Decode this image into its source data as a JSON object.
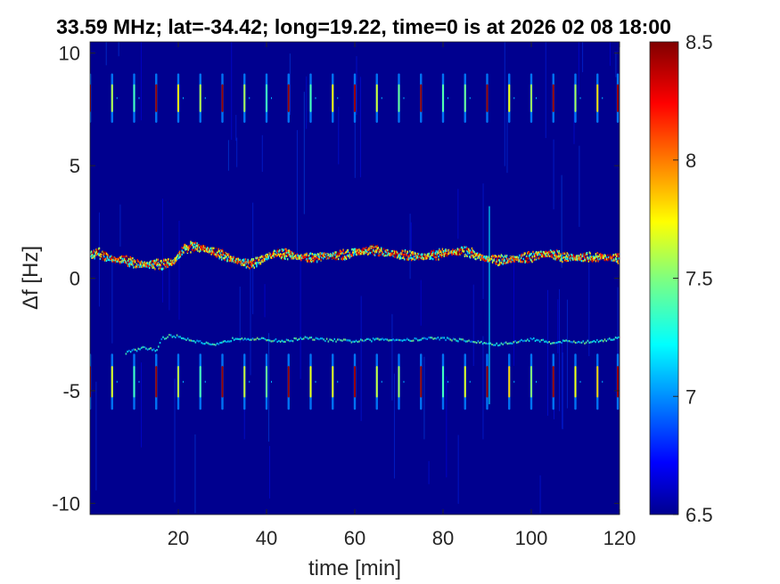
{
  "chart_data": {
    "type": "heatmap",
    "title": "33.59 MHz;  lat=-34.42; long=19.22, time=0 is at 2026 02 08 18:00",
    "xlabel": "time [min]",
    "ylabel": "Δf [Hz]",
    "xlim": [
      0,
      120
    ],
    "ylim": [
      -10.5,
      10.5
    ],
    "xticks": [
      "20",
      "40",
      "60",
      "80",
      "100",
      "120"
    ],
    "yticks": [
      "10",
      "5",
      "0",
      "-5",
      "-10"
    ],
    "colorbar": {
      "min": 6.5,
      "max": 8.5,
      "ticks": [
        "8.5",
        "8",
        "7.5",
        "7",
        "6.5"
      ],
      "colormap": "jet"
    },
    "background_level": 6.6,
    "features": {
      "main_trace": {
        "label": "main carrier trace near +1 Hz",
        "points": [
          [
            0,
            1.0
          ],
          [
            2,
            1.1
          ],
          [
            4,
            0.9
          ],
          [
            6,
            0.8
          ],
          [
            8,
            0.8
          ],
          [
            10,
            0.65
          ],
          [
            13,
            0.6
          ],
          [
            16,
            0.6
          ],
          [
            19,
            0.75
          ],
          [
            20,
            1.0
          ],
          [
            21,
            1.3
          ],
          [
            23,
            1.4
          ],
          [
            26,
            1.3
          ],
          [
            29,
            1.1
          ],
          [
            33,
            0.8
          ],
          [
            36,
            0.6
          ],
          [
            38,
            0.75
          ],
          [
            40,
            0.95
          ],
          [
            42,
            1.1
          ],
          [
            45,
            1.05
          ],
          [
            48,
            0.9
          ],
          [
            52,
            0.95
          ],
          [
            56,
            1.0
          ],
          [
            60,
            1.15
          ],
          [
            64,
            1.25
          ],
          [
            68,
            1.1
          ],
          [
            72,
            1.0
          ],
          [
            76,
            0.95
          ],
          [
            80,
            1.1
          ],
          [
            84,
            1.2
          ],
          [
            86,
            1.15
          ],
          [
            88,
            0.95
          ],
          [
            92,
            0.8
          ],
          [
            96,
            0.85
          ],
          [
            100,
            0.95
          ],
          [
            102,
            1.05
          ],
          [
            104,
            1.1
          ],
          [
            107,
            0.95
          ],
          [
            110,
            0.9
          ],
          [
            114,
            0.95
          ],
          [
            118,
            0.9
          ],
          [
            120,
            0.85
          ]
        ]
      },
      "secondary_trace": {
        "label": "faint trace near -3 Hz",
        "points": [
          [
            8,
            -3.3
          ],
          [
            12,
            -3.1
          ],
          [
            15,
            -3.2
          ],
          [
            16,
            -2.7
          ],
          [
            18,
            -2.55
          ],
          [
            20,
            -2.6
          ],
          [
            24,
            -2.8
          ],
          [
            28,
            -3.0
          ],
          [
            33,
            -2.65
          ],
          [
            38,
            -2.7
          ],
          [
            44,
            -2.8
          ],
          [
            48,
            -2.65
          ],
          [
            54,
            -2.75
          ],
          [
            60,
            -2.8
          ],
          [
            66,
            -2.7
          ],
          [
            72,
            -2.75
          ],
          [
            78,
            -2.65
          ],
          [
            84,
            -2.75
          ],
          [
            88,
            -2.85
          ],
          [
            92,
            -2.95
          ],
          [
            96,
            -2.85
          ],
          [
            100,
            -2.7
          ],
          [
            104,
            -2.85
          ],
          [
            108,
            -2.8
          ],
          [
            112,
            -2.85
          ],
          [
            116,
            -2.75
          ],
          [
            120,
            -2.65
          ]
        ]
      },
      "pulse_rows": {
        "upper_center": 8.0,
        "lower_center": -4.6,
        "period_min": 5.0,
        "first_min": 0.0,
        "strong_pulses_min": [
          0,
          15,
          30,
          45,
          60,
          75,
          90,
          105,
          120
        ]
      },
      "vertical_spike_min": 90.5
    }
  }
}
